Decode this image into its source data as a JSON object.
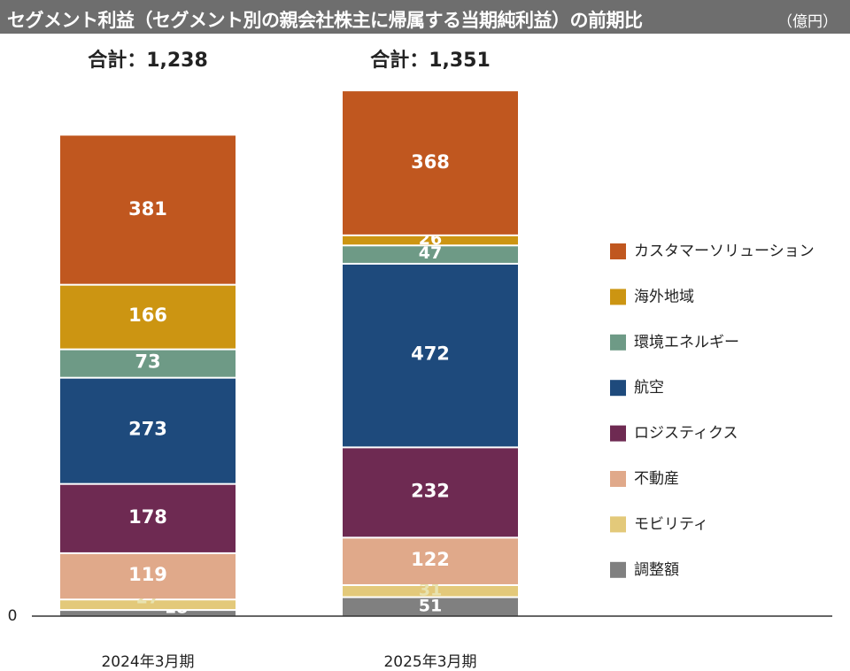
{
  "header": {
    "title": "セグメント利益（セグメント別の親会社株主に帰属する当期純利益）の前期比",
    "unit": "（億円）"
  },
  "colors": {
    "title_bar": "#6e6e6e",
    "axis": "#333333",
    "label_light": "#ffffff",
    "label_on_light": "#e8e3b0"
  },
  "chart_data": {
    "type": "bar",
    "stacked": true,
    "title": "セグメント利益（セグメント別の親会社株主に帰属する当期純利益）の前期比",
    "unit": "（億円）",
    "categories": [
      "2024年3月期",
      "2025年3月期"
    ],
    "ylim": [
      0,
      1450
    ],
    "y_tick_labels": [
      "0"
    ],
    "legend_position": "right",
    "totals": [
      {
        "label": "合計：1,238",
        "value": 1238
      },
      {
        "label": "合計：1,351",
        "value": 1351
      }
    ],
    "series": [
      {
        "name": "調整額",
        "color": "#808080",
        "values": [
          18,
          51
        ]
      },
      {
        "name": "モビリティ",
        "color": "#e3c97a",
        "values": [
          27,
          31
        ]
      },
      {
        "name": "不動産",
        "color": "#e0a98a",
        "values": [
          119,
          122
        ]
      },
      {
        "name": "ロジスティクス",
        "color": "#6e2a52",
        "values": [
          178,
          232
        ]
      },
      {
        "name": "航空",
        "color": "#1e4a7c",
        "values": [
          273,
          472
        ]
      },
      {
        "name": "環境エネルギー",
        "color": "#6e9a86",
        "values": [
          73,
          47
        ]
      },
      {
        "name": "海外地域",
        "color": "#cc9512",
        "values": [
          166,
          26
        ]
      },
      {
        "name": "カスタマーソリューション",
        "color": "#c0571f",
        "values": [
          381,
          368
        ]
      }
    ],
    "legend_order": [
      "カスタマーソリューション",
      "海外地域",
      "環境エネルギー",
      "航空",
      "ロジスティクス",
      "不動産",
      "モビリティ",
      "調整額"
    ]
  }
}
